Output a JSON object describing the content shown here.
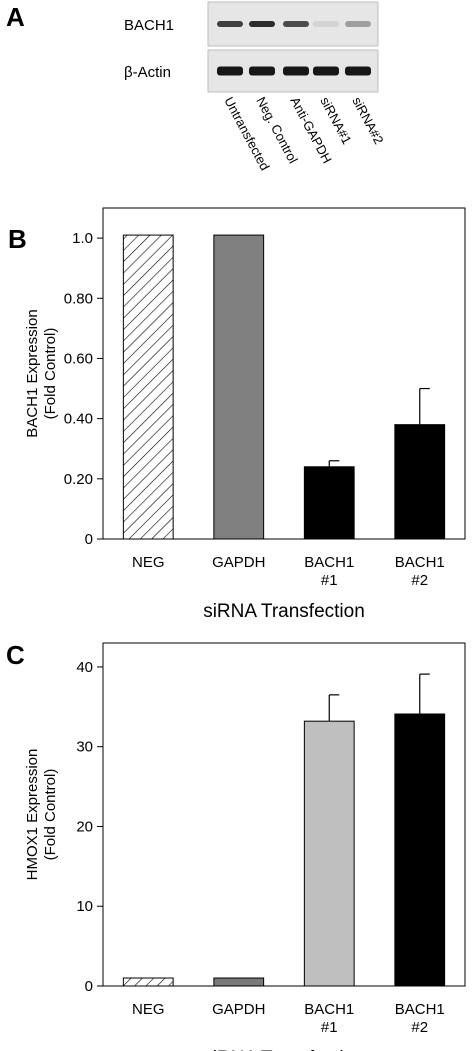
{
  "panel_a": {
    "label": "A",
    "blots": [
      {
        "name": "BACH1",
        "bands": [
          0.8,
          0.9,
          0.75,
          0.05,
          0.35
        ]
      },
      {
        "name": "β-Actin",
        "bands": [
          1,
          1,
          1,
          1,
          1
        ]
      }
    ],
    "lanes": [
      "Untransfected",
      "Neg. Control",
      "Anti-GAPDH",
      "siRNA#1",
      "siRNA#2"
    ]
  },
  "chart_data": [
    {
      "panel": "B",
      "type": "bar",
      "categories": [
        [
          "NEG"
        ],
        [
          "GAPDH"
        ],
        [
          "BACH1",
          "#1"
        ],
        [
          "BACH1",
          "#2"
        ]
      ],
      "values": [
        1.01,
        1.01,
        0.24,
        0.38
      ],
      "errors": [
        0.0,
        0.0,
        0.02,
        0.12
      ],
      "fills": [
        "hatch",
        "#808080",
        "#000000",
        "#000000"
      ],
      "xlabel": "siRNA Transfection",
      "ylabel": [
        "BACH1 Expression",
        "(Fold Control)"
      ],
      "ylim": [
        0,
        1.1
      ],
      "yticks": [
        0,
        0.2,
        0.4,
        0.6,
        0.8,
        1.0
      ],
      "ytick_labels": [
        "0",
        "0.20",
        "0.40",
        "0.60",
        "0.80",
        "1.0"
      ],
      "grid": false
    },
    {
      "panel": "C",
      "type": "bar",
      "categories": [
        [
          "NEG"
        ],
        [
          "GAPDH"
        ],
        [
          "BACH1",
          "#1"
        ],
        [
          "BACH1",
          "#2"
        ]
      ],
      "values": [
        1.0,
        1.0,
        33.2,
        34.1
      ],
      "errors": [
        0.0,
        0.0,
        3.3,
        5.0
      ],
      "fills": [
        "hatch",
        "#7a7a7a",
        "#bfbfbf",
        "#000000"
      ],
      "xlabel": "siRNA Transfection",
      "ylabel": [
        "HMOX1 Expression",
        "(Fold Control)"
      ],
      "ylim": [
        0,
        43
      ],
      "yticks": [
        0,
        10,
        20,
        30,
        40
      ],
      "ytick_labels": [
        "0",
        "10",
        "20",
        "30",
        "40"
      ],
      "grid": false
    }
  ]
}
